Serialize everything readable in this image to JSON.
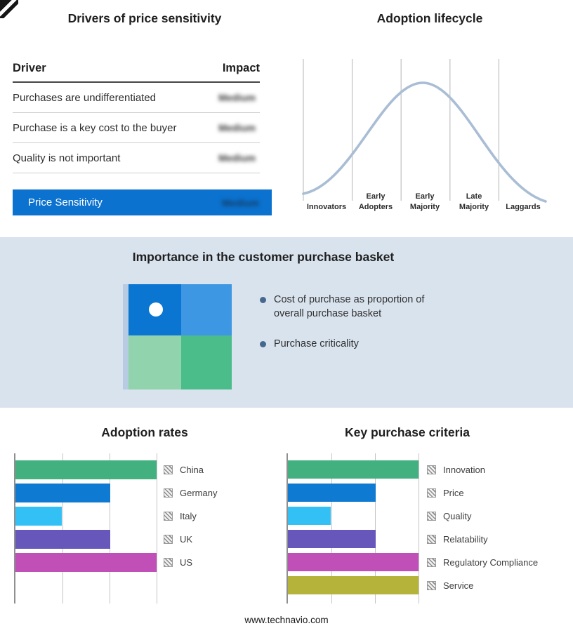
{
  "chart_data": [
    {
      "type": "table",
      "title": "Drivers of price sensitivity",
      "columns": [
        "Driver",
        "Impact"
      ],
      "rows": [
        {
          "driver": "Purchases are undifferentiated",
          "impact": "Medium",
          "impact_obscured": true
        },
        {
          "driver": "Purchase is a key cost to the buyer",
          "impact": "Medium",
          "impact_obscured": true
        },
        {
          "driver": "Quality is not important",
          "impact": "Medium",
          "impact_obscured": true
        }
      ],
      "highlight_row": {
        "driver": "Price Sensitivity",
        "impact": "Medium",
        "impact_obscured": true
      },
      "highlight_color": "#0b72cf"
    },
    {
      "type": "line",
      "title": "Adoption lifecycle",
      "categories": [
        "Innovators",
        "Early Adopters",
        "Early Majority",
        "Late Majority",
        "Laggards"
      ],
      "shape": "bell curve peaking over Early Majority",
      "curve_color": "#a9bdd5",
      "grid": true,
      "axis_labels_position": "bottom"
    },
    {
      "type": "bar",
      "title": "Adoption rates",
      "orientation": "horizontal",
      "categories": [
        "China",
        "Germany",
        "Italy",
        "UK",
        "US"
      ],
      "values": [
        100,
        67,
        33,
        67,
        100
      ],
      "value_scale": "relative length, axis unlabeled (1-3 gridline units)",
      "colors": [
        "#43b17f",
        "#0f7ad1",
        "#33c1f5",
        "#6757ba",
        "#c050b8"
      ],
      "legend_position": "right",
      "grid": true
    },
    {
      "type": "bar",
      "title": "Key purchase criteria",
      "orientation": "horizontal",
      "categories": [
        "Innovation",
        "Price",
        "Quality",
        "Relatability",
        "Regulatory Compliance",
        "Service"
      ],
      "values": [
        100,
        67,
        33,
        67,
        100,
        100
      ],
      "value_scale": "relative length, axis unlabeled (1-3 gridline units)",
      "colors": [
        "#43b17f",
        "#0f7ad1",
        "#33c1f5",
        "#6757ba",
        "#c050b8",
        "#b5b33a"
      ],
      "legend_position": "right",
      "grid": true
    }
  ],
  "basket": {
    "title": "Importance in the customer purchase basket",
    "bullets": [
      "Cost of purchase as proportion of overall purchase basket",
      "Purchase criticality"
    ],
    "quadrant_colors": {
      "top_left": "#0a76d2",
      "top_right": "#3e97e3",
      "bottom_left": "#90d3ac",
      "bottom_right": "#4abd8a"
    },
    "marker": "white dot in top-left quadrant"
  },
  "footer": {
    "url": "www.technavio.com"
  }
}
